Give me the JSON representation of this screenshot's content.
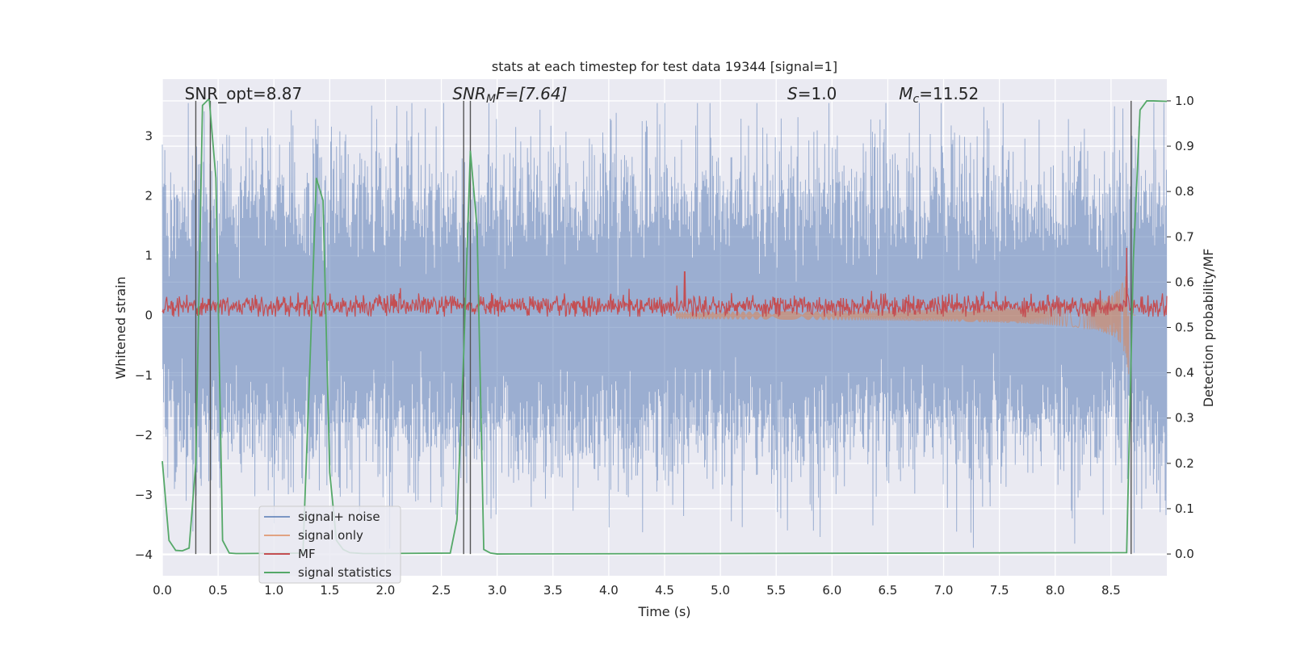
{
  "chart_data": {
    "type": "line",
    "title": "stats at each timestep for test data 19344 [signal=1]",
    "xlabel": "Time (s)",
    "ylabel": "Whitened strain",
    "y2label": "Detection probability/MF",
    "xlim": [
      0.0,
      9.0
    ],
    "ylim": [
      -4.35,
      3.95
    ],
    "y2lim": [
      -0.048,
      1.048
    ],
    "xticks": [
      0.0,
      0.5,
      1.0,
      1.5,
      2.0,
      2.5,
      3.0,
      3.5,
      4.0,
      4.5,
      5.0,
      5.5,
      6.0,
      6.5,
      7.0,
      7.5,
      8.0,
      8.5
    ],
    "xtick_labels": [
      "0.0",
      "0.5",
      "1.0",
      "1.5",
      "2.0",
      "2.5",
      "3.0",
      "3.5",
      "4.0",
      "4.5",
      "5.0",
      "5.5",
      "6.0",
      "6.5",
      "7.0",
      "7.5",
      "8.0",
      "8.5"
    ],
    "yticks": [
      -4,
      -3,
      -2,
      -1,
      0,
      1,
      2,
      3
    ],
    "ytick_labels": [
      "−4",
      "−3",
      "−2",
      "−1",
      "0",
      "1",
      "2",
      "3"
    ],
    "y2ticks": [
      0.0,
      0.1,
      0.2,
      0.3,
      0.4,
      0.5,
      0.6,
      0.7,
      0.8,
      0.9,
      1.0
    ],
    "y2tick_labels": [
      "0.0",
      "0.1",
      "0.2",
      "0.3",
      "0.4",
      "0.5",
      "0.6",
      "0.7",
      "0.8",
      "0.9",
      "1.0"
    ],
    "grid": true,
    "legend_position": "lower-left",
    "legend": [
      "signal+ noise",
      "signal only",
      "MF",
      "signal statistics"
    ],
    "colors": {
      "signal_noise": "#4c72b0",
      "signal_only": "#dd8452",
      "mf": "#c44e52",
      "signal_stats": "#55a868",
      "plot_bg": "#eaeaf2",
      "vlines": "#555555"
    },
    "annotations": [
      {
        "text": "SNR_opt=8.87",
        "x": 0.2
      },
      {
        "text": "SNR_MF=[7.64]",
        "x": 2.6,
        "base": "SNR",
        "sub": "M",
        "rest": "F=[7.64]"
      },
      {
        "text": "S=1.0",
        "x": 5.6,
        "base": "S",
        "rest": "=1.0"
      },
      {
        "text": "M_c=11.52",
        "x": 6.6,
        "base": "M",
        "sub": "c",
        "rest": "=11.52"
      }
    ],
    "vlines_x": [
      0.3,
      0.43,
      2.7,
      2.76,
      8.68
    ],
    "mf_peaks": [
      {
        "x": 4.68,
        "value": 0.73
      },
      {
        "x": 8.64,
        "value": 1.13
      }
    ],
    "signal_statistics": {
      "x": [
        0.0,
        0.06,
        0.12,
        0.18,
        0.24,
        0.3,
        0.36,
        0.42,
        0.48,
        0.54,
        0.6,
        0.66,
        0.72,
        1.26,
        1.32,
        1.38,
        1.44,
        1.5,
        1.56,
        1.62,
        1.68,
        1.74,
        1.8,
        1.86,
        1.92,
        2.58,
        2.64,
        2.7,
        2.76,
        2.82,
        2.88,
        2.94,
        3.0,
        8.64,
        8.7,
        8.76,
        8.82,
        8.88,
        9.0
      ],
      "y": [
        0.205,
        0.03,
        0.008,
        0.007,
        0.013,
        0.2,
        0.99,
        1.005,
        0.83,
        0.03,
        0.002,
        0.001,
        0.001,
        0.002,
        0.4,
        0.83,
        0.78,
        0.18,
        0.03,
        0.01,
        0.003,
        0.002,
        0.001,
        0.001,
        0.001,
        0.002,
        0.075,
        0.44,
        0.89,
        0.72,
        0.01,
        0.002,
        0.0,
        0.003,
        0.65,
        0.98,
        1.0,
        1.0,
        0.999
      ]
    },
    "signal_plus_noise": {
      "approx_range": [
        -4.0,
        3.55
      ],
      "typical_std": 1.0,
      "duration_s": 9.0
    },
    "signal_only": {
      "chirp_peak_time_s": 8.66,
      "peak_amplitude": 1.15
    }
  }
}
